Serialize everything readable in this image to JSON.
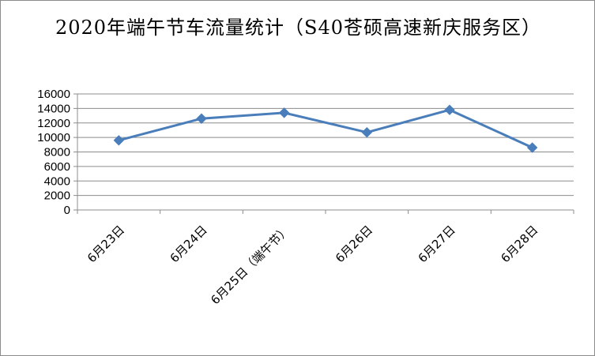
{
  "chart_data": {
    "type": "line",
    "title": "2020年端午节车流量统计（S40苍硕高速新庆服务区）",
    "categories": [
      "6月23日",
      "6月24日",
      "6月25日（端午节）",
      "6月26日",
      "6月27日",
      "6月28日"
    ],
    "series": [
      {
        "values": [
          9600,
          12600,
          13400,
          10700,
          13800,
          8600
        ]
      }
    ],
    "ylim": [
      0,
      16000
    ],
    "yticks": [
      0,
      2000,
      4000,
      6000,
      8000,
      10000,
      12000,
      14000,
      16000
    ],
    "grid": true,
    "legend": "none",
    "colors": {
      "line": "#4a7ebb",
      "grid": "#8c8c8c",
      "axis": "#8c8c8c"
    }
  }
}
